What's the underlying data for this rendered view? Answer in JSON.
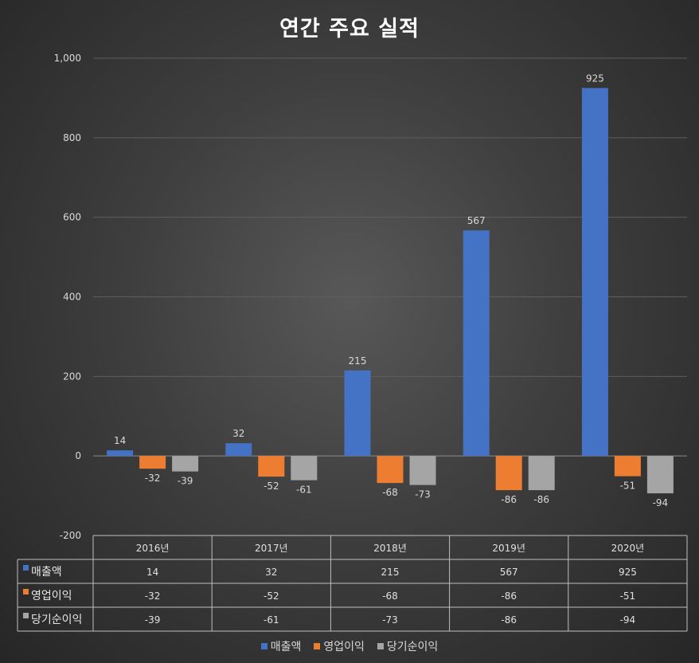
{
  "chart_data": {
    "type": "bar",
    "title": "연간 주요 실적",
    "categories": [
      "2016년",
      "2017년",
      "2018년",
      "2019년",
      "2020년"
    ],
    "series": [
      {
        "name": "매출액",
        "values": [
          14,
          32,
          215,
          567,
          925
        ],
        "color": "#4472c4"
      },
      {
        "name": "영업이익",
        "values": [
          -32,
          -52,
          -68,
          -86,
          -51
        ],
        "color": "#ed7d31"
      },
      {
        "name": "당기순이익",
        "values": [
          -39,
          -61,
          -73,
          -86,
          -94
        ],
        "color": "#a5a5a5"
      }
    ],
    "yticks": [
      "1,000",
      "800",
      "600",
      "400",
      "200",
      "0",
      "-200"
    ],
    "ytick_values": [
      1000,
      800,
      600,
      400,
      200,
      0,
      -200
    ],
    "ylim": [
      -200,
      1000
    ],
    "grid": true,
    "legend": "bottom",
    "data_table": true
  }
}
